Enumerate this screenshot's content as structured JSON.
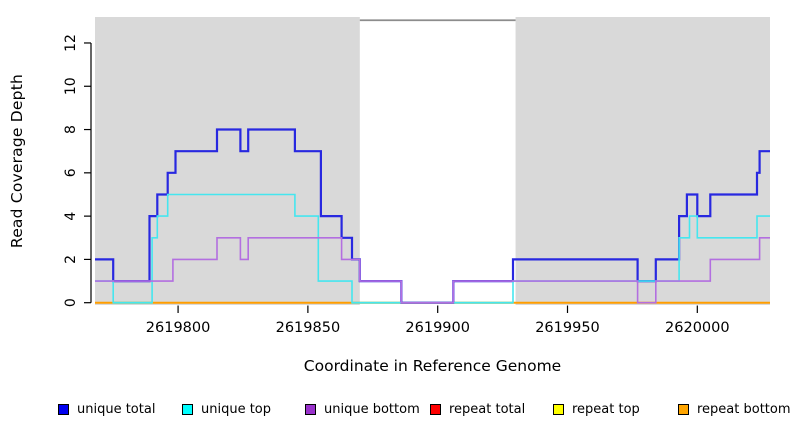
{
  "figure": {
    "xlabel": "Coordinate in Reference Genome",
    "ylabel": "Read Coverage Depth"
  },
  "chart_data": {
    "type": "line",
    "subtype": "step-coverage-plot",
    "title": "",
    "xlabel": "Coordinate in Reference Genome",
    "ylabel": "Read Coverage Depth",
    "xlim": [
      2619768,
      2620028
    ],
    "ylim": [
      0,
      13.2
    ],
    "x_ticks": [
      2619800,
      2619850,
      2619900,
      2619950,
      2620000
    ],
    "y_ticks": [
      0,
      2,
      4,
      6,
      8,
      10,
      12
    ],
    "grid": false,
    "legend_position": "bottom-horizontal",
    "plot_bg_color": "#d9d9d9",
    "outer_bg_color": "#ffffff",
    "gap_region": {
      "start": 2619870,
      "end": 2619930,
      "fill": "#ffffff",
      "top_line_value": 13.05,
      "top_line_color": "#8c8c8c"
    },
    "zero_overlap_color": "#83d9a1",
    "axis_color": "#000000",
    "series": [
      {
        "name": "unique total",
        "color": "#2828e0",
        "legend_color": "#0000f0",
        "width": 2.2,
        "steps": [
          [
            2619768,
            2
          ],
          [
            2619775,
            1
          ],
          [
            2619789,
            4
          ],
          [
            2619792,
            5
          ],
          [
            2619796,
            6
          ],
          [
            2619799,
            7
          ],
          [
            2619815,
            8
          ],
          [
            2619824,
            7
          ],
          [
            2619827,
            8
          ],
          [
            2619845,
            7
          ],
          [
            2619855,
            4
          ],
          [
            2619863,
            3
          ],
          [
            2619867,
            2
          ],
          [
            2619870,
            1
          ],
          [
            2619886,
            0
          ],
          [
            2619906,
            1
          ],
          [
            2619929,
            2
          ],
          [
            2619977,
            1
          ],
          [
            2619984,
            2
          ],
          [
            2619993,
            4
          ],
          [
            2619996,
            5
          ],
          [
            2620000,
            4
          ],
          [
            2620005,
            5
          ],
          [
            2620023,
            6
          ],
          [
            2620024,
            7
          ]
        ]
      },
      {
        "name": "unique top",
        "color": "#45e6ef",
        "legend_color": "#00ffff",
        "width": 1.6,
        "steps": [
          [
            2619768,
            1
          ],
          [
            2619775,
            0
          ],
          [
            2619790,
            3
          ],
          [
            2619792,
            4
          ],
          [
            2619796,
            5
          ],
          [
            2619845,
            4
          ],
          [
            2619854,
            1
          ],
          [
            2619867,
            0
          ],
          [
            2619929,
            1
          ],
          [
            2619993,
            3
          ],
          [
            2619997,
            4
          ],
          [
            2620000,
            3
          ],
          [
            2620023,
            4
          ]
        ]
      },
      {
        "name": "unique bottom",
        "color": "#b36fe0",
        "legend_color": "#9932cc",
        "width": 1.6,
        "steps": [
          [
            2619768,
            1
          ],
          [
            2619798,
            2
          ],
          [
            2619815,
            3
          ],
          [
            2619824,
            2
          ],
          [
            2619827,
            3
          ],
          [
            2619863,
            2
          ],
          [
            2619870,
            1
          ],
          [
            2619886,
            0
          ],
          [
            2619906,
            1
          ],
          [
            2619977,
            0
          ],
          [
            2619984,
            1
          ],
          [
            2620005,
            2
          ],
          [
            2620024,
            3
          ]
        ]
      },
      {
        "name": "repeat total",
        "color": "#ff0000",
        "legend_color": "#ff0000",
        "width": 1.5,
        "steps": [
          [
            2619768,
            0
          ]
        ]
      },
      {
        "name": "repeat top",
        "color": "#ffff00",
        "legend_color": "#ffff00",
        "width": 1.5,
        "steps": [
          [
            2619768,
            0
          ]
        ]
      },
      {
        "name": "repeat bottom",
        "color": "#ff9e00",
        "legend_color": "#ffa500",
        "width": 2,
        "steps": [
          [
            2619768,
            0
          ]
        ]
      }
    ]
  },
  "legend": {
    "items": [
      {
        "label": "unique total",
        "color": "#0000f0"
      },
      {
        "label": "unique top",
        "color": "#00ffff"
      },
      {
        "label": "unique bottom",
        "color": "#9932cc"
      },
      {
        "label": "repeat total",
        "color": "#ff0000"
      },
      {
        "label": "repeat top",
        "color": "#ffff00"
      },
      {
        "label": "repeat bottom",
        "color": "#ffa500"
      }
    ]
  }
}
